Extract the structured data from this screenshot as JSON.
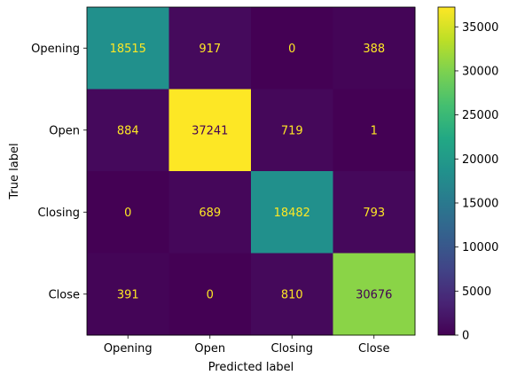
{
  "chart_data": {
    "type": "heatmap",
    "title": "",
    "xlabel": "Predicted label",
    "ylabel": "True label",
    "x_categories": [
      "Opening",
      "Open",
      "Closing",
      "Close"
    ],
    "y_categories": [
      "Opening",
      "Open",
      "Closing",
      "Close"
    ],
    "values": [
      [
        18515,
        917,
        0,
        388
      ],
      [
        884,
        37241,
        719,
        1
      ],
      [
        0,
        689,
        18482,
        793
      ],
      [
        391,
        0,
        810,
        30676
      ]
    ],
    "colormap": "viridis",
    "color_range": [
      0,
      37241
    ],
    "colorbar_ticks": [
      0,
      5000,
      10000,
      15000,
      20000,
      25000,
      30000,
      35000
    ],
    "grid": false,
    "colors": {
      "text_on_dark": "#fde725",
      "text_on_light": "#440154"
    }
  }
}
